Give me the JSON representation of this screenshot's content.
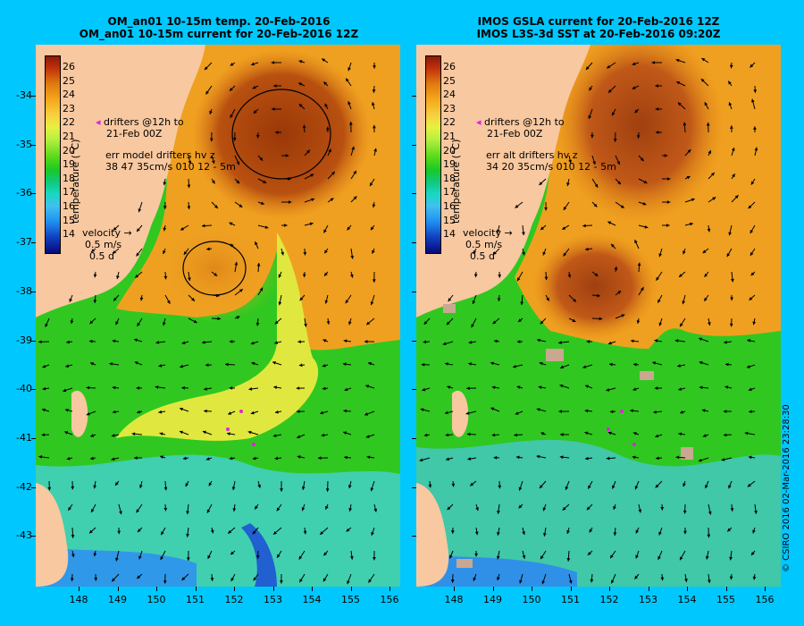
{
  "titles": {
    "left_line1": "OM_an01 10-15m temp. 20-Feb-2016",
    "left_line2": "OM_an01 10-15m current for 20-Feb-2016 12Z",
    "right_line1": "IMOS GSLA current for 20-Feb-2016 12Z",
    "right_line2": "IMOS L3S-3d SST at 20-Feb-2016 09:20Z"
  },
  "axes": {
    "lat_ticks": [
      "-34",
      "-35",
      "-36",
      "-37",
      "-38",
      "-39",
      "-40",
      "-41",
      "-42",
      "-43"
    ],
    "lon_ticks": [
      "148",
      "149",
      "150",
      "151",
      "152",
      "153",
      "154",
      "155",
      "156"
    ]
  },
  "colorbar": {
    "label": "temperature (°C)",
    "ticks": [
      "26",
      "25",
      "24",
      "23",
      "22",
      "21",
      "20",
      "19",
      "18",
      "17",
      "16",
      "15",
      "14"
    ]
  },
  "legend": {
    "left": {
      "drifters_l1": "drifters @12h to",
      "drifters_l2": "21-Feb 00Z",
      "err_l1": "err model drifters hv z",
      "err_l2": "38 47 35cm/s 010 12 - 5m"
    },
    "right": {
      "drifters_l1": "drifters @12h to",
      "drifters_l2": "21-Feb 00Z",
      "err_l1": "err alt drifters hv z",
      "err_l2": "34 20 35cm/s 010 12 - 5m"
    },
    "velocity": "velocity",
    "velocity_scale": "0.5 m/s",
    "velocity_time": "0.5 d"
  },
  "credit": "© CSIRO 2016  02-Mar-2016 23:28:30",
  "colors": {
    "land": "#f8c8a0",
    "warm_core": "#a04010",
    "orange": "#f0a020",
    "yellow": "#e8e840",
    "green": "#30c820",
    "cyan": "#40d0c0",
    "blue": "#3090f0",
    "background": "#00c8ff",
    "drifter": "#e020e0"
  }
}
